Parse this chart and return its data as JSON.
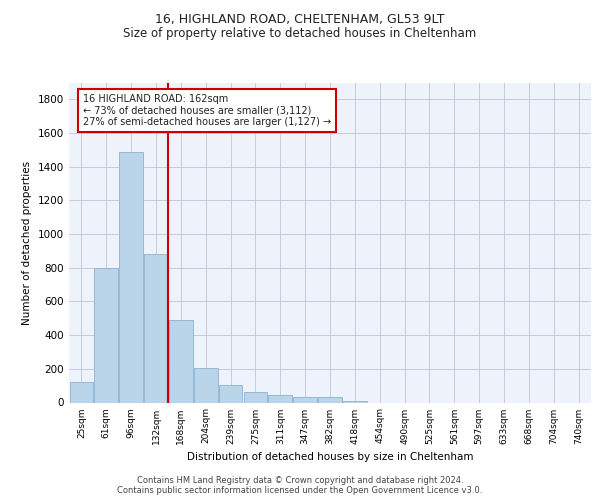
{
  "title1": "16, HIGHLAND ROAD, CHELTENHAM, GL53 9LT",
  "title2": "Size of property relative to detached houses in Cheltenham",
  "xlabel": "Distribution of detached houses by size in Cheltenham",
  "ylabel": "Number of detached properties",
  "footnote1": "Contains HM Land Registry data © Crown copyright and database right 2024.",
  "footnote2": "Contains public sector information licensed under the Open Government Licence v3.0.",
  "categories": [
    "25sqm",
    "61sqm",
    "96sqm",
    "132sqm",
    "168sqm",
    "204sqm",
    "239sqm",
    "275sqm",
    "311sqm",
    "347sqm",
    "382sqm",
    "418sqm",
    "454sqm",
    "490sqm",
    "525sqm",
    "561sqm",
    "597sqm",
    "633sqm",
    "668sqm",
    "704sqm",
    "740sqm"
  ],
  "values": [
    120,
    800,
    1490,
    880,
    490,
    205,
    105,
    65,
    45,
    35,
    30,
    10,
    0,
    0,
    0,
    0,
    0,
    0,
    0,
    0,
    0
  ],
  "bar_color": "#bad4ea",
  "bar_edge_color": "#8ab4d4",
  "vline_x": 3.5,
  "highlight_label": "16 HIGHLAND ROAD: 162sqm",
  "annotation_line1": "← 73% of detached houses are smaller (3,112)",
  "annotation_line2": "27% of semi-detached houses are larger (1,127) →",
  "vline_color": "#cc0000",
  "box_color": "#cc0000",
  "ylim": [
    0,
    1900
  ],
  "yticks": [
    0,
    200,
    400,
    600,
    800,
    1000,
    1200,
    1400,
    1600,
    1800
  ],
  "axes_bg": "#eef2fb",
  "grid_color": "#bbbbcc"
}
